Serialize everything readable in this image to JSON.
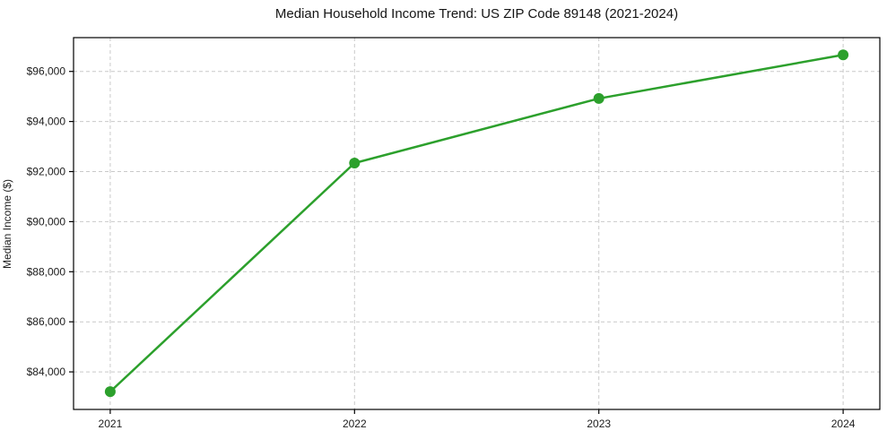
{
  "figure": {
    "background": "#ffffff"
  },
  "chart_data": {
    "type": "line",
    "title": "Median Household Income Trend: US ZIP Code 89148 (2021-2024)",
    "xlabel": "",
    "ylabel": "Median Income ($)",
    "categories": [
      "2021",
      "2022",
      "2023",
      "2024"
    ],
    "values": [
      83210,
      92340,
      94920,
      96660
    ],
    "ylim": [
      82500,
      97350
    ],
    "yticks": [
      84000,
      86000,
      88000,
      90000,
      92000,
      94000,
      96000
    ],
    "ytick_labels": [
      "$84,000",
      "$86,000",
      "$88,000",
      "$90,000",
      "$92,000",
      "$94,000",
      "$96,000"
    ],
    "xtick_labels": [
      "2021",
      "2022",
      "2023",
      "2024"
    ],
    "grid": "both",
    "grid_style": "dashed",
    "grid_color": "#c9c9c9",
    "axis_color": "#000000",
    "text_color": "#1c1c1c",
    "line_color": "#2ca02c",
    "marker": "circle",
    "marker_radius": 6,
    "line_width": 2.5,
    "legend": "none"
  }
}
